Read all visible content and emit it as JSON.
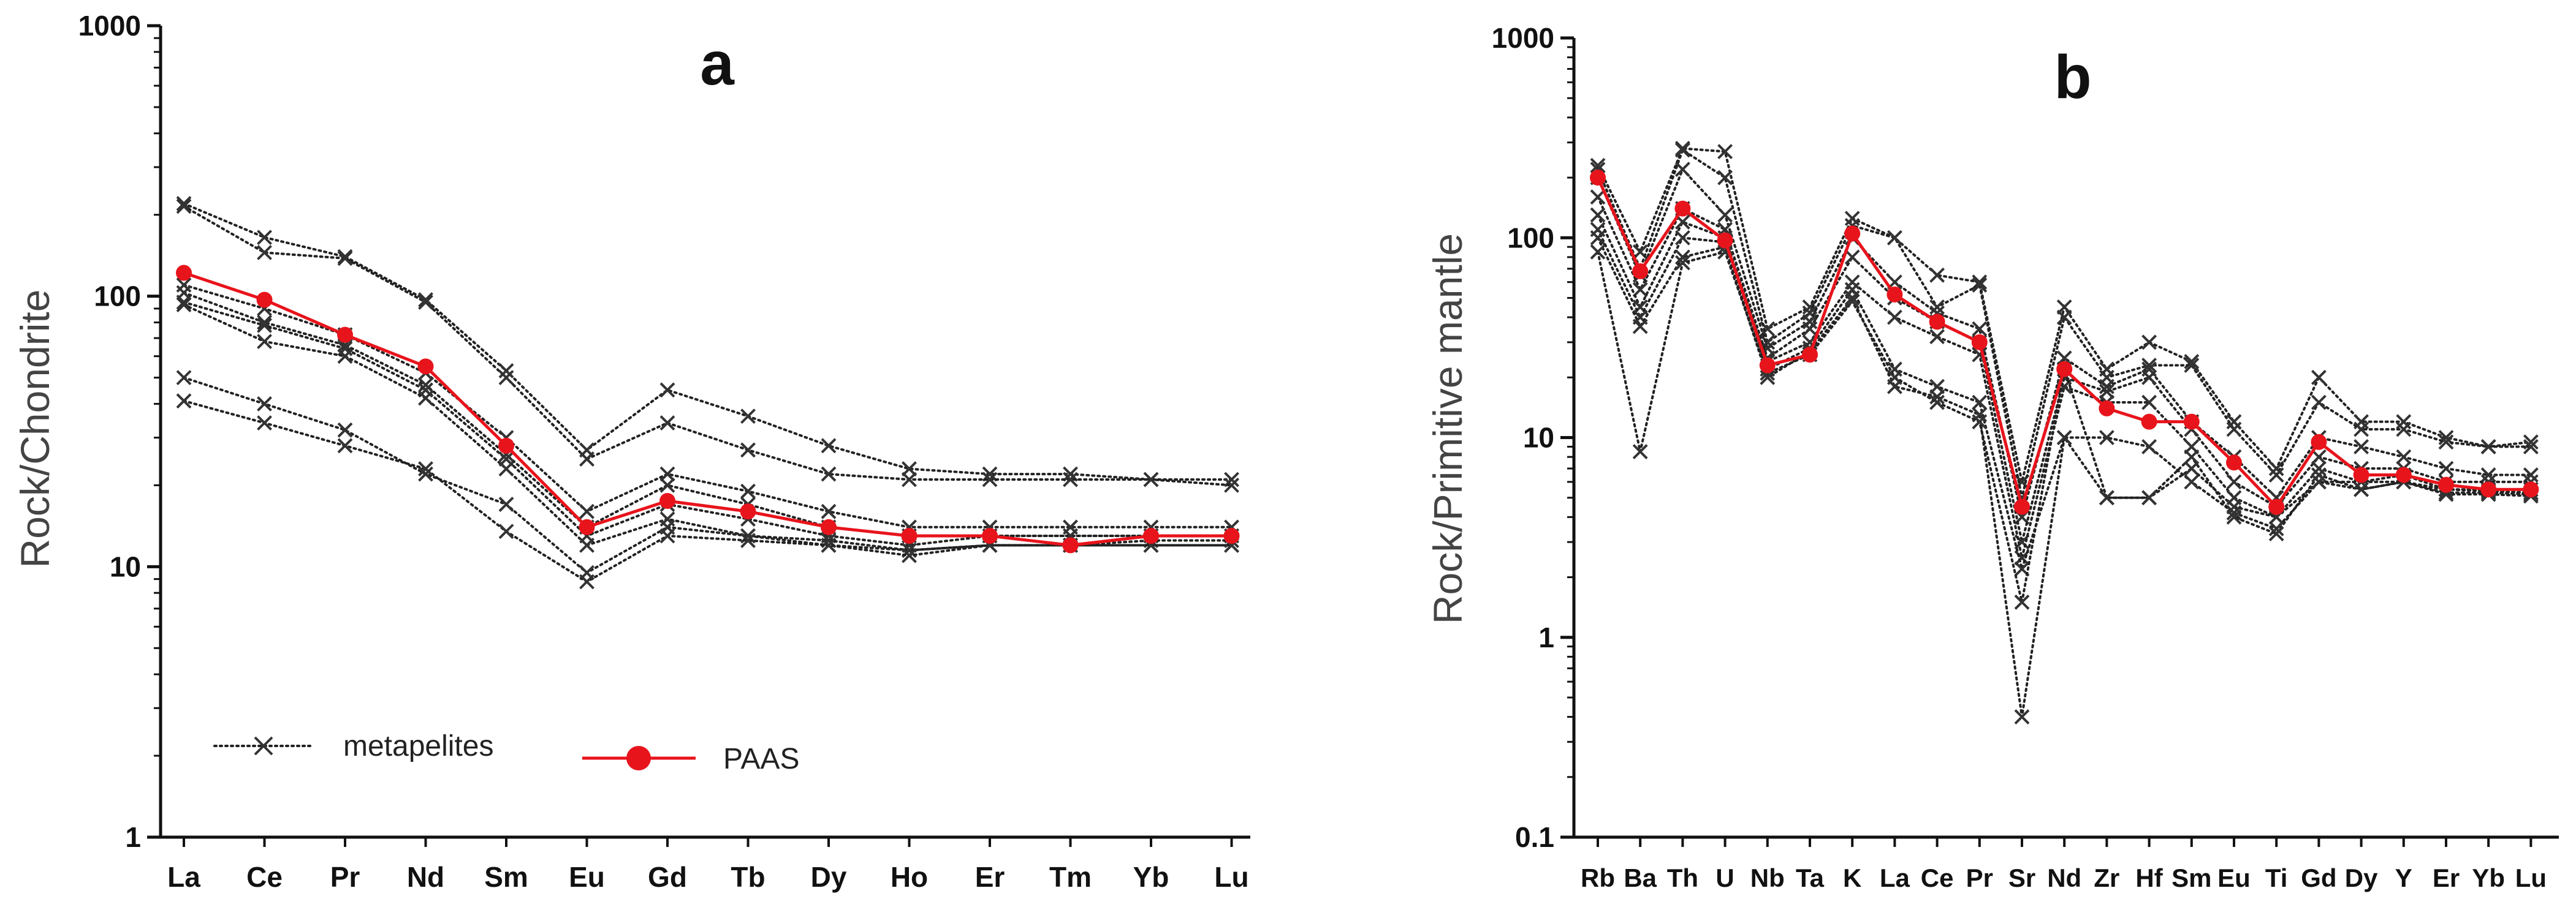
{
  "chart_data": [
    {
      "type": "line",
      "panel": "a",
      "title": "a",
      "ylabel": "Rock/Chondrite",
      "xlabel": "",
      "yscale": "log",
      "ylim": [
        1,
        1000
      ],
      "yticks": [
        1,
        10,
        100,
        1000
      ],
      "ytick_labels": [
        "1",
        "10",
        "100",
        "1000"
      ],
      "categories": [
        "La",
        "Ce",
        "Pr",
        "Nd",
        "Sm",
        "Eu",
        "Gd",
        "Tb",
        "Dy",
        "Ho",
        "Er",
        "Tm",
        "Yb",
        "Lu"
      ],
      "legend": {
        "position": "bottom-left",
        "entries": [
          {
            "label": "metapelites",
            "style": "dotted-x",
            "color": "#222222"
          },
          {
            "label": "PAAS",
            "style": "solid-dot",
            "color": "#e8141c"
          }
        ]
      },
      "series": [
        {
          "name": "metapelites",
          "values": [
            220,
            165,
            140,
            97,
            53,
            27,
            45,
            36,
            28,
            23,
            22,
            22,
            21,
            21
          ]
        },
        {
          "name": "metapelites",
          "values": [
            215,
            145,
            138,
            95,
            50,
            25,
            34,
            27,
            22,
            21,
            21,
            21,
            21,
            20
          ]
        },
        {
          "name": "metapelites",
          "values": [
            110,
            90,
            72,
            52,
            30,
            16,
            22,
            19,
            16,
            14,
            14,
            14,
            14,
            14
          ]
        },
        {
          "name": "metapelites",
          "values": [
            103,
            80,
            66,
            47,
            26,
            14,
            20,
            17,
            14,
            13,
            13,
            13,
            13,
            13
          ]
        },
        {
          "name": "metapelites",
          "values": [
            95,
            78,
            64,
            45,
            25,
            13,
            17,
            15,
            13,
            12,
            13,
            13,
            13,
            13
          ]
        },
        {
          "name": "metapelites",
          "values": [
            93,
            68,
            60,
            42,
            23,
            12,
            15,
            13,
            12.5,
            11.5,
            12,
            12,
            12,
            12
          ]
        },
        {
          "name": "metapelites",
          "values": [
            50,
            40,
            32,
            22,
            17,
            9.5,
            14,
            13,
            12,
            11.5,
            12,
            12,
            12.5,
            12.5
          ]
        },
        {
          "name": "metapelites",
          "values": [
            41,
            34,
            28,
            23,
            13.5,
            8.8,
            13,
            12.5,
            12,
            11,
            12,
            12,
            12,
            12
          ]
        },
        {
          "name": "PAAS",
          "values": [
            122,
            97,
            72,
            55,
            28,
            14,
            17.5,
            16,
            14,
            13,
            13,
            12,
            13,
            13
          ]
        }
      ]
    },
    {
      "type": "line",
      "panel": "b",
      "title": "b",
      "ylabel": "Rock/Primitive mantle",
      "xlabel": "",
      "yscale": "log",
      "ylim": [
        0.1,
        1000
      ],
      "yticks": [
        0.1,
        1,
        10,
        100,
        1000
      ],
      "ytick_labels": [
        "0.1",
        "1",
        "10",
        "100",
        "1000"
      ],
      "categories": [
        "Rb",
        "Ba",
        "Th",
        "U",
        "Nb",
        "Ta",
        "K",
        "La",
        "Ce",
        "Pr",
        "Sr",
        "Nd",
        "Zr",
        "Hf",
        "Sm",
        "Eu",
        "Ti",
        "Gd",
        "Dy",
        "Y",
        "Er",
        "Yb",
        "Lu"
      ],
      "series": [
        {
          "name": "metapelites",
          "values": [
            230,
            85,
            280,
            270,
            35,
            45,
            125,
            100,
            65,
            60,
            6,
            45,
            22,
            30,
            24,
            12,
            7,
            20,
            12,
            12,
            10,
            9,
            9.5
          ]
        },
        {
          "name": "metapelites",
          "values": [
            220,
            70,
            275,
            200,
            30,
            42,
            115,
            100,
            45,
            58,
            5,
            40,
            20,
            23,
            23,
            11,
            6.5,
            15,
            11,
            11,
            9.5,
            9,
            9
          ]
        },
        {
          "name": "metapelites",
          "values": [
            200,
            65,
            220,
            130,
            28,
            38,
            100,
            60,
            42,
            35,
            4,
            25,
            18,
            22,
            12,
            8,
            5,
            10,
            9,
            8,
            7,
            6.5,
            6.5
          ]
        },
        {
          "name": "metapelites",
          "values": [
            160,
            55,
            140,
            110,
            25,
            35,
            80,
            50,
            38,
            30,
            3,
            20,
            17,
            20,
            11,
            6,
            4.5,
            8,
            7,
            7,
            6,
            6,
            6
          ]
        },
        {
          "name": "metapelites",
          "values": [
            130,
            45,
            120,
            100,
            24,
            30,
            60,
            40,
            32,
            26,
            2.5,
            18,
            15,
            15,
            9,
            5,
            4,
            7,
            6,
            6.5,
            5.5,
            5.5,
            5.5
          ]
        },
        {
          "name": "metapelites",
          "values": [
            110,
            40,
            100,
            95,
            22,
            28,
            55,
            22,
            18,
            15,
            2.2,
            10,
            10,
            9,
            6,
            4.2,
            3.5,
            6,
            5.5,
            6,
            5.3,
            5.3,
            5.2
          ]
        },
        {
          "name": "metapelites",
          "values": [
            100,
            36,
            80,
            90,
            20,
            27,
            50,
            18,
            16,
            13,
            0.4,
            10,
            5,
            5,
            8,
            4,
            3.3,
            6.5,
            5.5,
            6,
            5.2,
            5.2,
            5.1
          ]
        },
        {
          "name": "metapelites",
          "values": [
            85,
            8.5,
            75,
            85,
            21,
            26,
            48,
            20,
            15,
            12,
            1.5,
            22,
            5,
            5,
            7,
            4.5,
            4,
            6,
            6,
            6,
            5.5,
            5.4,
            5.3
          ]
        },
        {
          "name": "PAAS",
          "values": [
            200,
            68,
            140,
            97,
            23,
            26,
            105,
            52,
            38,
            30,
            4.5,
            22,
            14,
            12,
            12,
            7.5,
            4.5,
            9.5,
            6.5,
            6.5,
            5.8,
            5.5,
            5.5
          ]
        }
      ]
    }
  ]
}
